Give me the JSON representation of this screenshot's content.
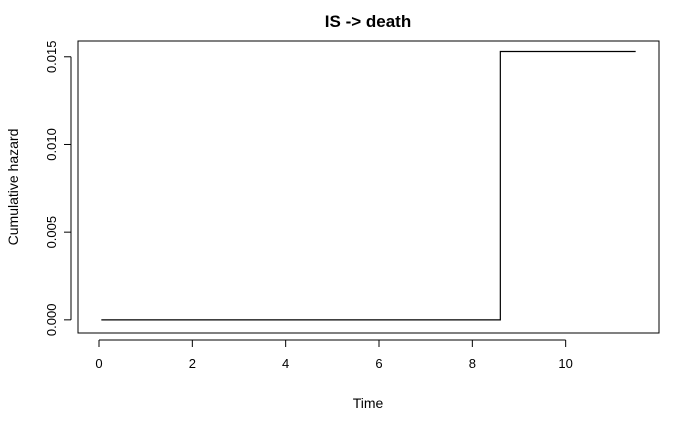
{
  "chart_data": {
    "type": "line",
    "title": "IS -> death",
    "xlabel": "Time",
    "ylabel": "Cumulative hazard",
    "xlim": [
      -0.45,
      12.0
    ],
    "ylim": [
      -0.00075,
      0.0159
    ],
    "x_ticks": [
      0,
      2,
      4,
      6,
      8,
      10
    ],
    "y_ticks": [
      0.0,
      0.005,
      0.01,
      0.015
    ],
    "x_tick_labels": [
      "0",
      "2",
      "4",
      "6",
      "8",
      "10"
    ],
    "y_tick_labels": [
      "0.000",
      "0.005",
      "0.010",
      "0.015"
    ],
    "grid": false,
    "step": true,
    "series": [
      {
        "x": [
          0.05,
          8.6,
          8.6,
          11.5
        ],
        "y": [
          0.0,
          0.0,
          0.0153,
          0.0153
        ]
      }
    ]
  }
}
